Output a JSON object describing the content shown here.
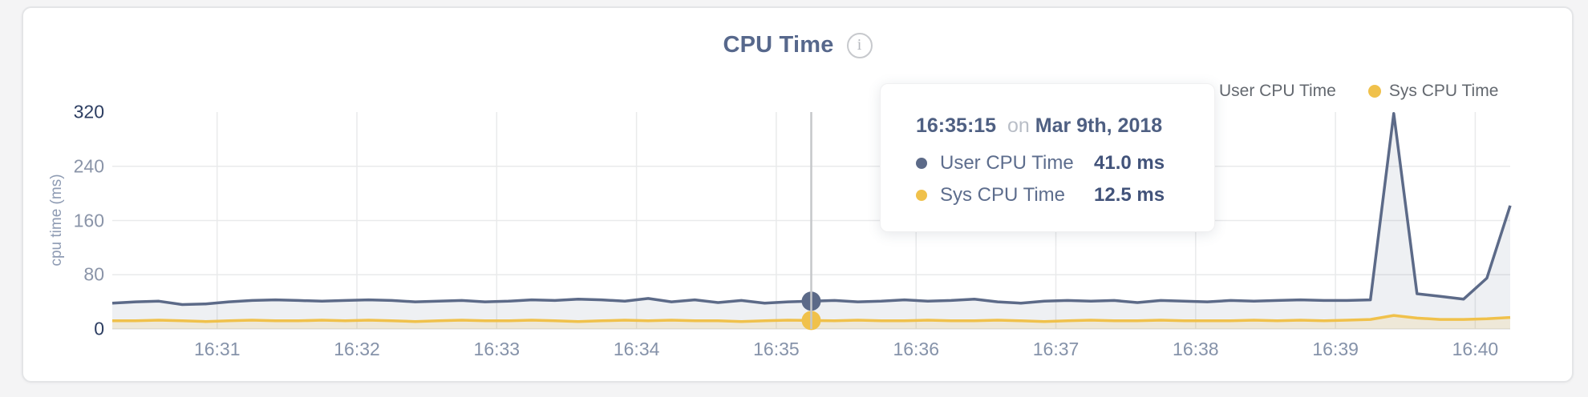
{
  "header": {
    "title": "CPU Time",
    "info_icon_glyph": "i"
  },
  "legend": {
    "items": [
      {
        "label": "User CPU Time",
        "color": "#5c6a88"
      },
      {
        "label": "Sys CPU Time",
        "color": "#f0c14b"
      }
    ]
  },
  "tooltip": {
    "time": "16:35:15",
    "connector": "on",
    "date": "Mar 9th, 2018",
    "rows": [
      {
        "label": "User CPU Time",
        "value": "41.0 ms",
        "color": "#5c6a88"
      },
      {
        "label": "Sys CPU Time",
        "value": "12.5 ms",
        "color": "#f0c14b"
      }
    ]
  },
  "chart_data": {
    "type": "area",
    "title": "CPU Time",
    "ylabel": "cpu time (ms)",
    "ylim": [
      0,
      320
    ],
    "y_ticks": [
      320,
      240,
      160,
      80,
      0
    ],
    "y_gridlines": [
      80,
      160,
      240
    ],
    "grid": true,
    "legend_position": "top-right",
    "date": "Mar 9th, 2018",
    "x_start_time": "16:30:15",
    "x_interval_seconds": 10,
    "x_total_units": 60,
    "x_ticks": [
      {
        "label": "16:31",
        "t": 4.5
      },
      {
        "label": "16:32",
        "t": 10.5
      },
      {
        "label": "16:33",
        "t": 16.5
      },
      {
        "label": "16:34",
        "t": 22.5
      },
      {
        "label": "16:35",
        "t": 28.5
      },
      {
        "label": "16:36",
        "t": 34.5
      },
      {
        "label": "16:37",
        "t": 40.5
      },
      {
        "label": "16:38",
        "t": 46.5
      },
      {
        "label": "16:39",
        "t": 52.5
      },
      {
        "label": "16:40",
        "t": 58.5
      }
    ],
    "hover_index": 30,
    "hover_time": "16:35:15",
    "crosshair_color": "#c5c7ca",
    "series": [
      {
        "name": "User CPU Time",
        "color": "#5c6a88",
        "fill": "rgba(92,106,136,0.10)",
        "values": [
          38,
          40,
          41,
          36,
          37,
          40,
          42,
          43,
          42,
          41,
          42,
          43,
          42,
          40,
          41,
          42,
          40,
          41,
          43,
          42,
          44,
          43,
          41,
          45,
          40,
          43,
          39,
          42,
          38,
          40,
          41,
          42,
          40,
          41,
          43,
          41,
          42,
          44,
          40,
          38,
          41,
          42,
          41,
          42,
          39,
          42,
          41,
          40,
          42,
          41,
          42,
          43,
          42,
          42,
          43,
          318,
          52,
          48,
          44,
          75,
          182
        ]
      },
      {
        "name": "Sys CPU Time",
        "color": "#f0c14b",
        "fill": "rgba(240,193,75,0.16)",
        "values": [
          12,
          12,
          13,
          12,
          11,
          12,
          13,
          12,
          12,
          13,
          12,
          13,
          12,
          11,
          12,
          13,
          12,
          12,
          13,
          12,
          11,
          12,
          13,
          12,
          13,
          12,
          12,
          11,
          12,
          13,
          12.5,
          12,
          13,
          12,
          12,
          13,
          12,
          12,
          13,
          12,
          11,
          12,
          13,
          12,
          12,
          13,
          12,
          12,
          12,
          13,
          12,
          13,
          12,
          13,
          14,
          20,
          16,
          14,
          14,
          15,
          17
        ]
      }
    ]
  }
}
